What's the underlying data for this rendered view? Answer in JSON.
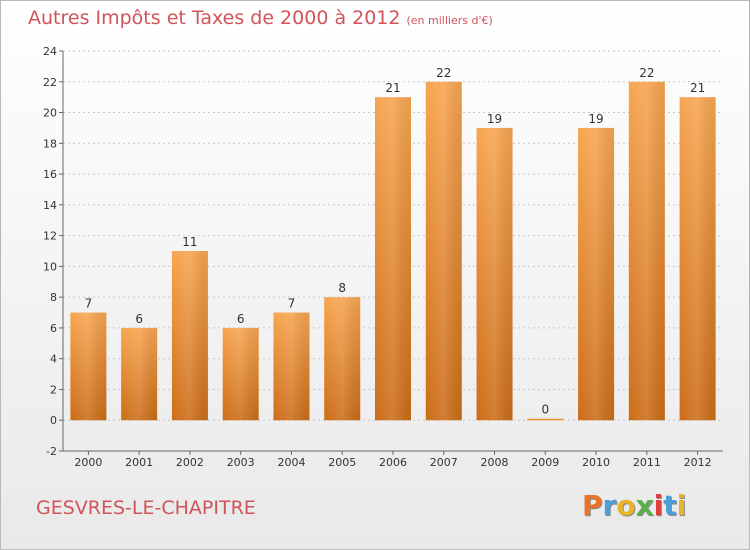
{
  "chart_data": {
    "type": "bar",
    "title": "Autres Impôts et Taxes de 2000 à 2012",
    "subtitle": "(en milliers d'€)",
    "categories": [
      "2000",
      "2001",
      "2002",
      "2003",
      "2004",
      "2005",
      "2006",
      "2007",
      "2008",
      "2009",
      "2010",
      "2011",
      "2012"
    ],
    "values": [
      7,
      6,
      11,
      6,
      7,
      8,
      21,
      22,
      19,
      0,
      19,
      22,
      21
    ],
    "data_labels": [
      "7",
      "6",
      "11",
      "6",
      "7",
      "8",
      "21",
      "22",
      "19",
      "0",
      "19",
      "22",
      "21"
    ],
    "xlabel": "",
    "ylabel": "",
    "ylim": [
      -2,
      24
    ],
    "yticks": [
      -2,
      0,
      2,
      4,
      6,
      8,
      10,
      12,
      14,
      16,
      18,
      20,
      22,
      24
    ],
    "grid": "horizontal dashed",
    "bar_color": "#f0902a"
  },
  "footer": {
    "location": "GESVRES-LE-CHAPITRE",
    "brand": [
      "P",
      "r",
      "o",
      "x",
      "i",
      "t",
      "i"
    ],
    "brand_colors": [
      "#e8742a",
      "#4a9fd8",
      "#e8b52a",
      "#58b04a",
      "#e03e3e",
      "#4a9fd8",
      "#e8b52a"
    ]
  }
}
